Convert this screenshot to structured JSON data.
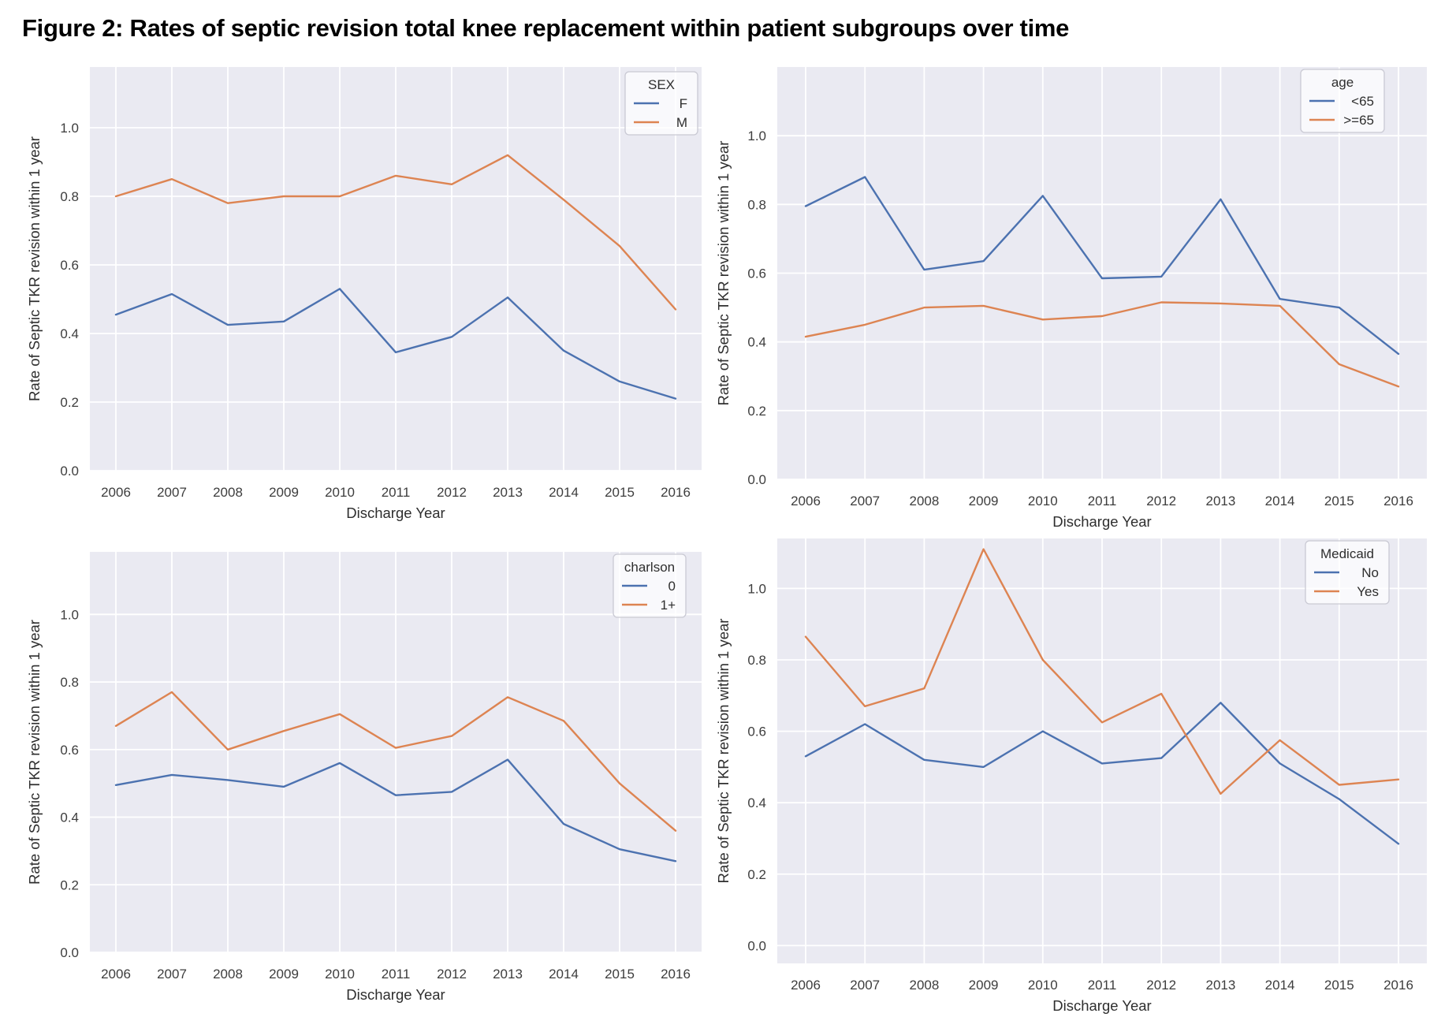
{
  "figure_title": "Figure 2: Rates of septic revision total knee replacement within patient subgroups over time",
  "colors": {
    "series_blue": "#4c72b0",
    "series_orange": "#dd8452",
    "plot_background": "#eaeaf2",
    "gridline": "#ffffff",
    "tick_text": "#3d3d3d",
    "axis_label_text": "#2e2e2e",
    "legend_border": "#c9c9d3"
  },
  "chart_data": [
    {
      "type": "line",
      "position": "top-left",
      "legend_title": "SEX",
      "legend_position": "upper right",
      "x": [
        2006,
        2007,
        2008,
        2009,
        2010,
        2011,
        2012,
        2013,
        2014,
        2015,
        2016
      ],
      "xlabel": "Discharge Year",
      "ylabel": "Rate of Septic TKR revision within 1 year",
      "yticks": [
        0.0,
        0.2,
        0.4,
        0.6,
        0.8,
        1.0
      ],
      "ylim": [
        0,
        1.177
      ],
      "grid": true,
      "series": [
        {
          "name": "F",
          "color": "#4c72b0",
          "values": [
            0.455,
            0.515,
            0.425,
            0.435,
            0.53,
            0.345,
            0.39,
            0.505,
            0.35,
            0.26,
            0.21
          ]
        },
        {
          "name": "M",
          "color": "#dd8452",
          "values": [
            0.8,
            0.85,
            0.78,
            0.8,
            0.8,
            0.86,
            0.835,
            0.92,
            0.79,
            0.655,
            0.47
          ]
        }
      ]
    },
    {
      "type": "line",
      "position": "top-right",
      "legend_title": "age",
      "legend_position": "upper right",
      "x": [
        2006,
        2007,
        2008,
        2009,
        2010,
        2011,
        2012,
        2013,
        2014,
        2015,
        2016
      ],
      "xlabel": "Discharge Year",
      "ylabel": "Rate of Septic TKR revision within 1 year",
      "yticks": [
        0.0,
        0.2,
        0.4,
        0.6,
        0.8,
        1.0
      ],
      "ylim": [
        0,
        1.2
      ],
      "grid": true,
      "series": [
        {
          "name": "<65",
          "color": "#4c72b0",
          "values": [
            0.795,
            0.88,
            0.61,
            0.635,
            0.825,
            0.585,
            0.59,
            0.815,
            0.525,
            0.5,
            0.365
          ]
        },
        {
          "name": ">=65",
          "color": "#dd8452",
          "values": [
            0.415,
            0.45,
            0.5,
            0.505,
            0.465,
            0.475,
            0.515,
            0.512,
            0.505,
            0.335,
            0.27
          ]
        }
      ]
    },
    {
      "type": "line",
      "position": "bottom-left",
      "legend_title": "charlson",
      "legend_position": "upper right",
      "x": [
        2006,
        2007,
        2008,
        2009,
        2010,
        2011,
        2012,
        2013,
        2014,
        2015,
        2016
      ],
      "xlabel": "Discharge Year",
      "ylabel": "Rate of Septic TKR revision within 1 year",
      "yticks": [
        0.0,
        0.2,
        0.4,
        0.6,
        0.8,
        1.0
      ],
      "ylim": [
        0,
        1.185
      ],
      "grid": true,
      "series": [
        {
          "name": "0",
          "color": "#4c72b0",
          "values": [
            0.495,
            0.525,
            0.51,
            0.49,
            0.56,
            0.465,
            0.475,
            0.57,
            0.38,
            0.305,
            0.27
          ]
        },
        {
          "name": "1+",
          "color": "#dd8452",
          "values": [
            0.67,
            0.77,
            0.6,
            0.655,
            0.705,
            0.605,
            0.64,
            0.755,
            0.685,
            0.5,
            0.36
          ]
        }
      ]
    },
    {
      "type": "line",
      "position": "bottom-right",
      "legend_title": "Medicaid",
      "legend_position": "upper right",
      "x": [
        2006,
        2007,
        2008,
        2009,
        2010,
        2011,
        2012,
        2013,
        2014,
        2015,
        2016
      ],
      "xlabel": "Discharge Year",
      "ylabel": "Rate of Septic TKR revision within 1 year",
      "yticks": [
        0.0,
        0.2,
        0.4,
        0.6,
        0.8,
        1.0
      ],
      "ylim": [
        -0.05,
        1.14
      ],
      "grid": true,
      "series": [
        {
          "name": "No",
          "color": "#4c72b0",
          "values": [
            0.53,
            0.62,
            0.52,
            0.5,
            0.6,
            0.51,
            0.525,
            0.68,
            0.51,
            0.41,
            0.285
          ]
        },
        {
          "name": "Yes",
          "color": "#dd8452",
          "values": [
            0.865,
            0.67,
            0.72,
            1.11,
            0.8,
            0.625,
            0.705,
            0.425,
            0.575,
            0.45,
            0.465
          ]
        }
      ]
    }
  ]
}
